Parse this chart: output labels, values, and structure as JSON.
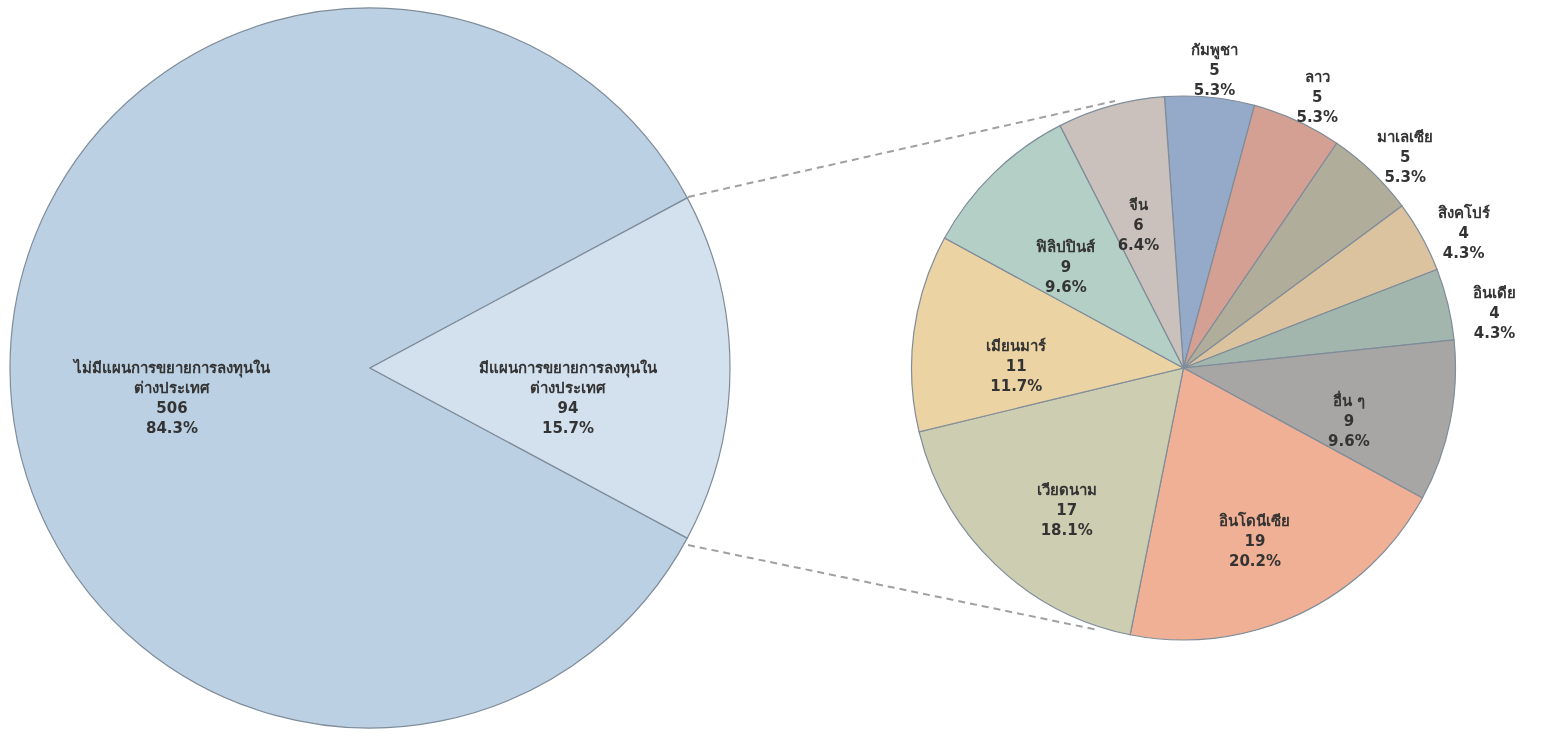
{
  "chart_data": [
    {
      "type": "pie",
      "categories": [
        "ไม่มีแผนการขยายการลงทุนใน\nต่างประเทศ",
        "มีแผนการขยายการลงทุนใน\nต่างประเทศ"
      ],
      "values": [
        506,
        94
      ],
      "colors": [
        "#bcd0e4",
        "#d3e0ee"
      ],
      "value_labels": [
        "506\n84.3%",
        "94\n15.7%"
      ]
    },
    {
      "type": "pie",
      "categories": [
        "กัมพูชา",
        "ลาว",
        "มาเลเซีย",
        "สิงคโปร์",
        "อินเดีย",
        "อื่น ๆ",
        "อินโดนีเซีย",
        "เวียดนาม",
        "เมียนมาร์",
        "ฟิลิปปินส์",
        "จีน"
      ],
      "values": [
        5,
        5,
        5,
        4,
        4,
        9,
        19,
        17,
        11,
        9,
        6
      ],
      "colors": [
        "#94aac8",
        "#d3a093",
        "#b0ae9a",
        "#dcc3a0",
        "#a3b6ae",
        "#a8a6a4",
        "#f0b095",
        "#cdceb1",
        "#ecd3a4",
        "#b4cfc6",
        "#cac0bc"
      ],
      "value_labels": [
        "5\n5.3%",
        "5\n5.3%",
        "5\n5.3%",
        "4\n4.3%",
        "4\n4.3%",
        "9\n9.6%",
        "19\n20.2%",
        "17\n18.1%",
        "11\n11.7%",
        "9\n9.6%",
        "6\n6.4%"
      ]
    }
  ]
}
